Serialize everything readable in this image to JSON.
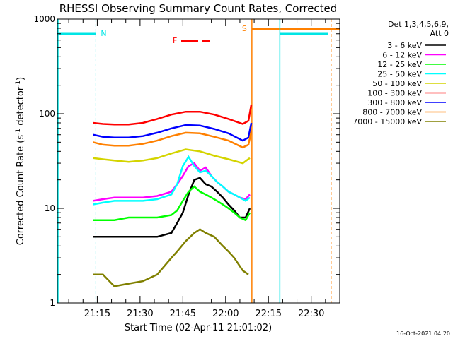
{
  "chart_data": {
    "type": "line",
    "title": "RHESSI Observing Summary Count Rates, Corrected",
    "xlabel": "Start Time (02-Apr-11 21:01:02)",
    "ylabel": "Corrected Count Rate (s⁻¹ detector⁻¹)",
    "ylabel_main": "Corrected Count Rate (s",
    "ylabel_mid": " detector",
    "ylabel_end": ")",
    "ylabel_sup": "-1",
    "yscale": "log",
    "ylim": [
      1,
      1000
    ],
    "xlim_minutes": [
      0,
      99
    ],
    "x_tick_labels": [
      "21:15",
      "21:30",
      "21:45",
      "22:00",
      "22:15",
      "22:30"
    ],
    "x_tick_minutes": [
      14,
      29,
      44,
      59,
      74,
      89
    ],
    "y_tick_labels": [
      "1",
      "10",
      "100",
      "1000"
    ],
    "y_tick_values": [
      1,
      10,
      100,
      1000
    ],
    "timestamp": "16-Oct-2021 04:20",
    "legend": {
      "header": [
        "Det 1,3,4,5,6,9,",
        "Att 0"
      ],
      "placement": "right"
    },
    "series": [
      {
        "name": "3 - 6 keV",
        "color": "#000000",
        "x": [
          12.5,
          16,
          20,
          25,
          30,
          35,
          40,
          42,
          44,
          46,
          48,
          50,
          52,
          54,
          56,
          58,
          60,
          62,
          64,
          66,
          67.5
        ],
        "y": [
          5,
          5,
          5,
          5,
          5,
          5,
          5.5,
          7,
          9,
          14,
          20,
          21,
          18,
          17,
          15,
          13,
          11,
          9.5,
          8,
          8,
          10
        ]
      },
      {
        "name": "6 - 12 keV",
        "color": "#ff00ff",
        "x": [
          12.5,
          16,
          20,
          25,
          30,
          35,
          40,
          42,
          44,
          46,
          48,
          50,
          52,
          54,
          56,
          58,
          60,
          62,
          64,
          66,
          67.5
        ],
        "y": [
          12,
          12.5,
          13,
          13,
          13,
          13.5,
          15,
          18,
          22,
          28,
          30,
          25,
          27,
          22,
          19,
          17,
          15,
          14,
          13,
          12.5,
          14
        ]
      },
      {
        "name": "12 - 25 keV",
        "color": "#00ff00",
        "x": [
          12.5,
          16,
          20,
          25,
          30,
          35,
          40,
          42,
          44,
          46,
          48,
          50,
          52,
          54,
          56,
          58,
          60,
          62,
          64,
          66,
          67.5
        ],
        "y": [
          7.5,
          7.5,
          7.5,
          8,
          8,
          8,
          8.5,
          9.5,
          12,
          15,
          17,
          15,
          14,
          13,
          12,
          11,
          10,
          9,
          8,
          7.5,
          9
        ]
      },
      {
        "name": "25 - 50 keV",
        "color": "#00ffff",
        "x": [
          12.5,
          16,
          20,
          25,
          30,
          35,
          40,
          42,
          44,
          46,
          48,
          50,
          52,
          54,
          56,
          58,
          60,
          62,
          64,
          66,
          67.5
        ],
        "y": [
          11,
          11.5,
          12,
          12,
          12,
          12.5,
          14,
          18,
          28,
          35,
          28,
          24,
          25,
          22,
          19,
          17,
          15,
          14,
          13,
          12,
          13
        ]
      },
      {
        "name": "50 - 100 keV",
        "color": "#d4d400",
        "x": [
          12.5,
          16,
          20,
          25,
          30,
          35,
          40,
          45,
          50,
          55,
          60,
          65,
          67.5
        ],
        "y": [
          34,
          33,
          32,
          31,
          32,
          34,
          38,
          42,
          40,
          36,
          33,
          30,
          34
        ]
      },
      {
        "name": "100 - 300 keV",
        "color": "#ff0000",
        "x": [
          12.5,
          16,
          20,
          25,
          30,
          35,
          40,
          45,
          50,
          55,
          60,
          65,
          67,
          68
        ],
        "y": [
          80,
          78,
          77,
          77,
          80,
          88,
          98,
          105,
          105,
          98,
          88,
          78,
          84,
          125
        ]
      },
      {
        "name": "300 - 800 keV",
        "color": "#0000ff",
        "x": [
          12.5,
          16,
          20,
          25,
          30,
          35,
          40,
          45,
          50,
          55,
          60,
          65,
          67,
          68
        ],
        "y": [
          60,
          57,
          56,
          56,
          58,
          63,
          70,
          76,
          75,
          69,
          62,
          52,
          56,
          80
        ]
      },
      {
        "name": "800 - 7000 keV",
        "color": "#ff8000",
        "x": [
          12.5,
          16,
          20,
          25,
          30,
          35,
          40,
          45,
          50,
          55,
          60,
          65,
          67,
          68
        ],
        "y": [
          50,
          47,
          46,
          46,
          48,
          52,
          58,
          63,
          62,
          57,
          52,
          44,
          47,
          65
        ]
      },
      {
        "name": "7000 - 15000 keV",
        "color": "#808000",
        "x": [
          12.5,
          16,
          20,
          25,
          30,
          35,
          40,
          42,
          45,
          48,
          50,
          52,
          55,
          58,
          60,
          62,
          65,
          67
        ],
        "y": [
          2,
          2,
          1.5,
          1.6,
          1.7,
          2,
          3,
          3.5,
          4.5,
          5.5,
          6,
          5.5,
          5,
          4,
          3.5,
          3,
          2.2,
          2
        ]
      }
    ],
    "annotations": {
      "N": "N",
      "S": "S",
      "F": "F"
    }
  }
}
